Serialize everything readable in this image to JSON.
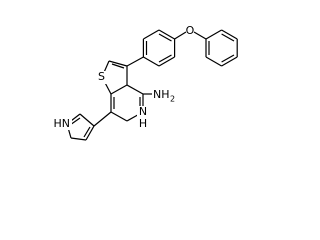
{
  "atoms": {
    "sulfur": "S",
    "oxygen": "O",
    "amine": "NH",
    "amine_subscript": "2",
    "pyridine_n": "N",
    "pyridine_h": "H",
    "pyrrole_nh": "HN"
  }
}
